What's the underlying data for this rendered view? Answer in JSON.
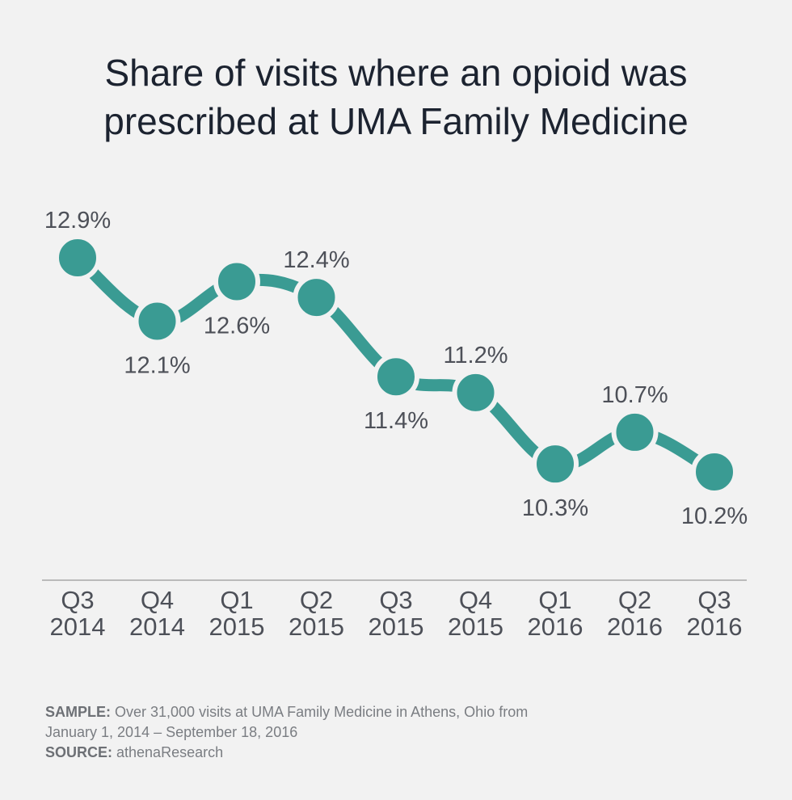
{
  "title": {
    "line1": "Share of visits where an opioid was",
    "line2": "prescribed at UMA Family Medicine"
  },
  "chart_data": {
    "type": "line",
    "title": "Share of visits where an opioid was prescribed at UMA Family Medicine",
    "xlabel": "",
    "ylabel": "",
    "grid": false,
    "legend": "none",
    "categories": [
      [
        "Q3",
        "2014"
      ],
      [
        "Q4",
        "2014"
      ],
      [
        "Q1",
        "2015"
      ],
      [
        "Q2",
        "2015"
      ],
      [
        "Q3",
        "2015"
      ],
      [
        "Q4",
        "2015"
      ],
      [
        "Q1",
        "2016"
      ],
      [
        "Q2",
        "2016"
      ],
      [
        "Q3",
        "2016"
      ]
    ],
    "values": [
      12.9,
      12.1,
      12.6,
      12.4,
      11.4,
      11.2,
      10.3,
      10.7,
      10.2
    ],
    "value_labels": [
      "12.9%",
      "12.1%",
      "12.6%",
      "12.4%",
      "11.4%",
      "11.2%",
      "10.3%",
      "10.7%",
      "10.2%"
    ],
    "label_position": [
      "above",
      "below",
      "below",
      "above",
      "below",
      "above",
      "below",
      "above",
      "below"
    ]
  },
  "colors": {
    "series": "#3a9b93",
    "text": "#4d5058",
    "axis": "#a8a8a8",
    "background": "#f2f2f2"
  },
  "footer": {
    "sample_label": "SAMPLE:",
    "sample_text": " Over 31,000 visits at UMA Family Medicine in Athens, Ohio from",
    "sample_text2": "January 1, 2014 – September 18, 2016",
    "source_label": "SOURCE:",
    "source_text": " athenaResearch"
  }
}
